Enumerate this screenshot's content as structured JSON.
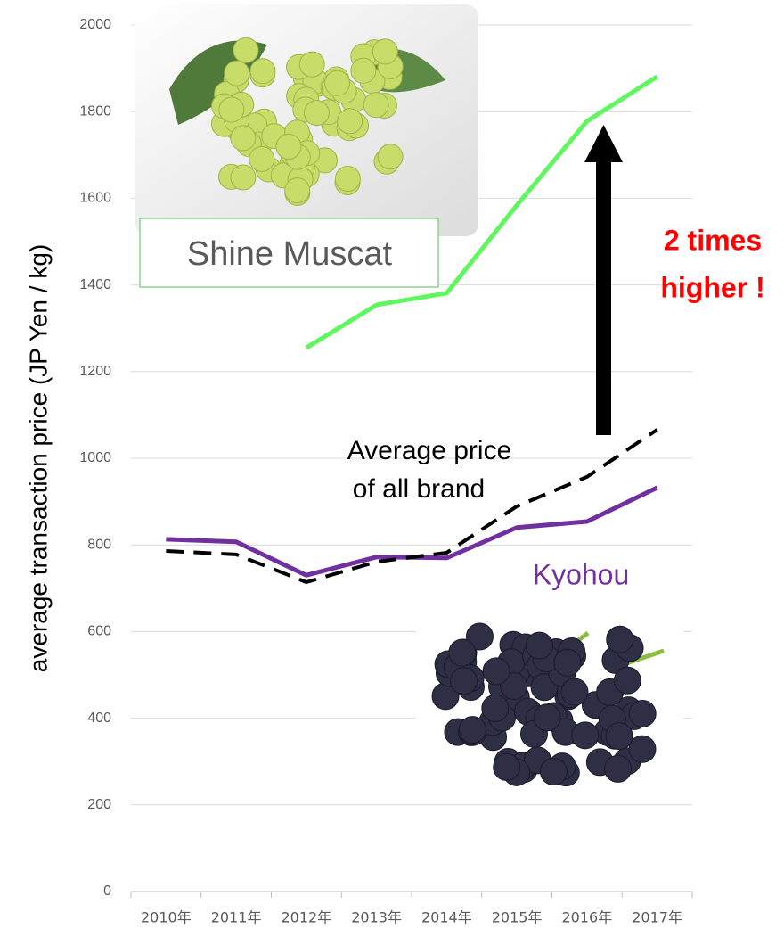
{
  "chart_data": {
    "type": "line",
    "ylabel": "average transaction price (JP Yen / kg)",
    "categories": [
      "2010年",
      "2011年",
      "2012年",
      "2013年",
      "2014年",
      "2015年",
      "2016年",
      "2017年"
    ],
    "series": [
      {
        "name": "Shine Muscat",
        "color": "#5ef75e",
        "values": [
          null,
          null,
          1255,
          1354,
          1381,
          1584,
          1778,
          1881
        ]
      },
      {
        "name": "Kyohou",
        "color": "#7030a0",
        "values": [
          813,
          807,
          730,
          772,
          770,
          840,
          854,
          932
        ]
      },
      {
        "name_lines": [
          "Average price",
          "of all brand"
        ],
        "color": "#000000",
        "dashed": true,
        "values": [
          786,
          778,
          714,
          761,
          782,
          889,
          957,
          1066
        ]
      }
    ],
    "annotation_lines": [
      "2 times",
      "higher !"
    ],
    "ylim": [
      0,
      2000
    ],
    "yticks": [
      0,
      200,
      400,
      600,
      800,
      1000,
      1200,
      1400,
      1600,
      1800,
      2000
    ],
    "grid": true
  }
}
